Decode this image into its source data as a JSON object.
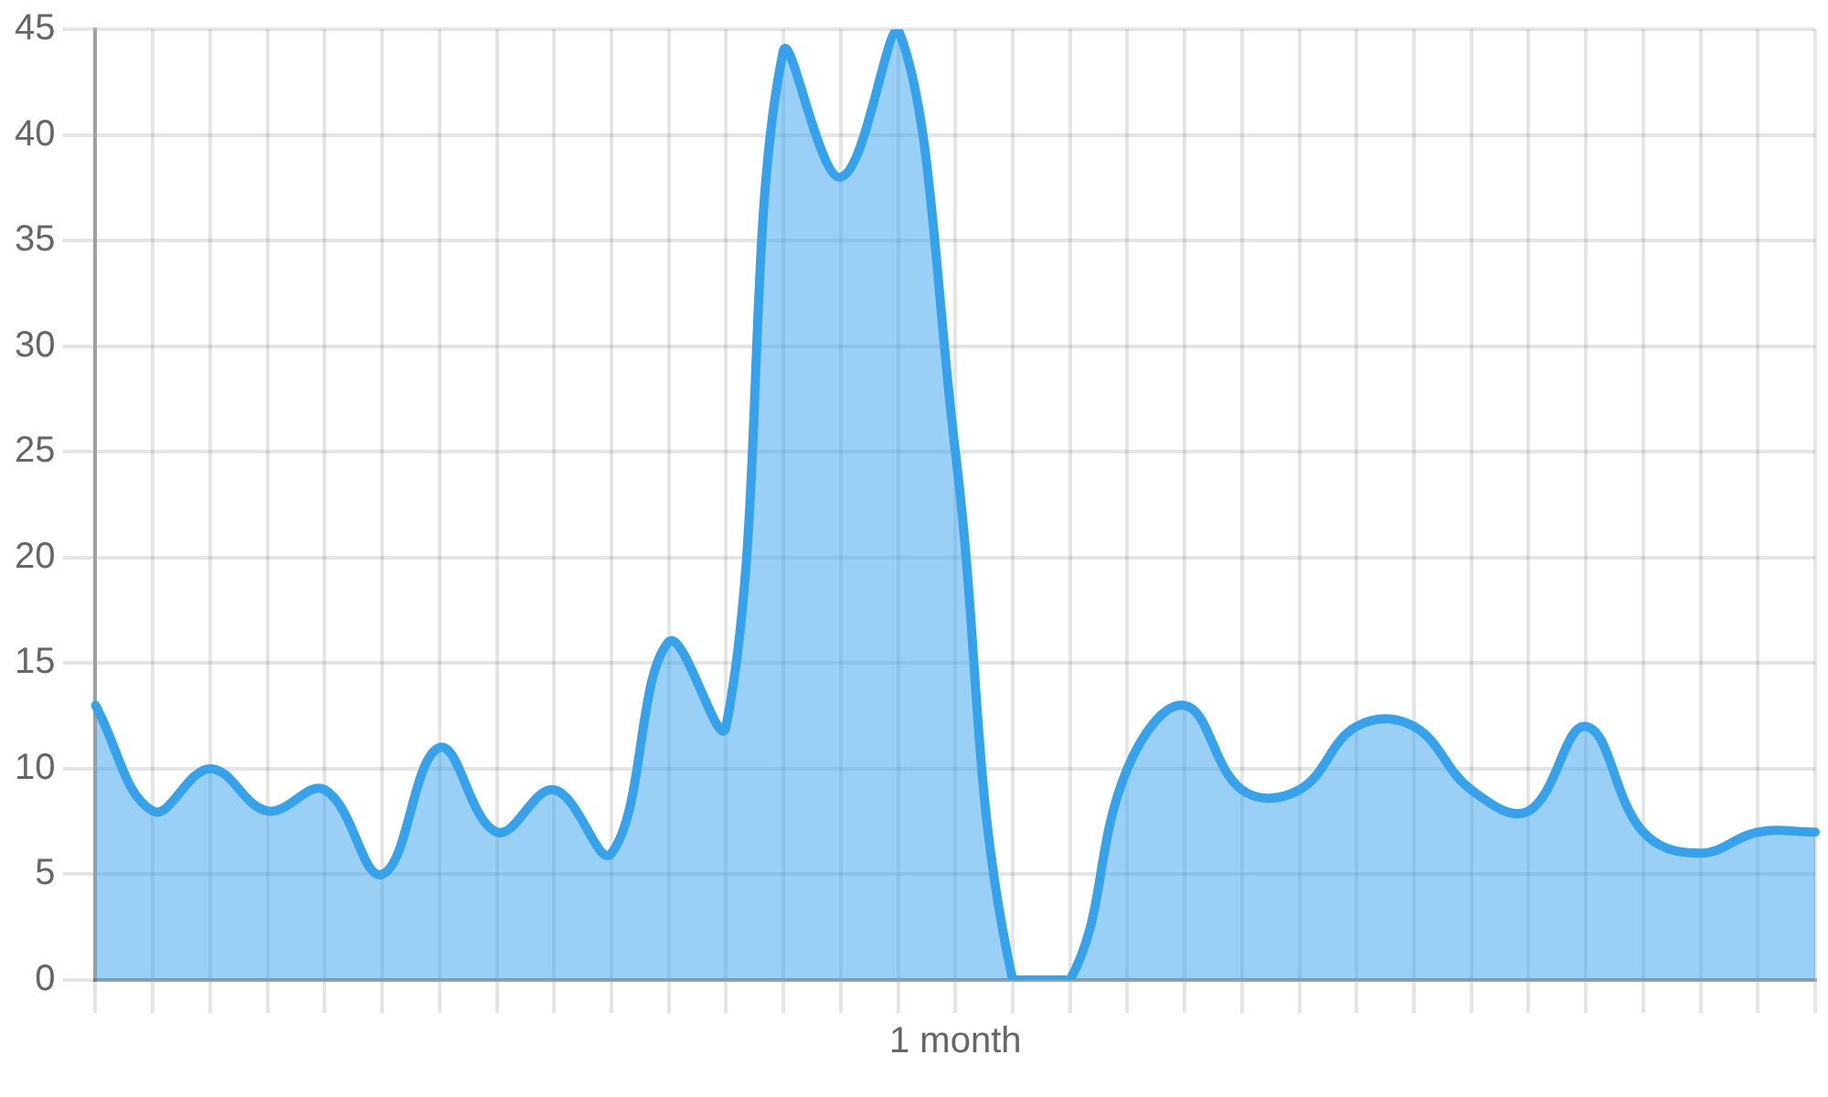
{
  "chart_data": {
    "type": "area",
    "categories": [
      null,
      null,
      null,
      null,
      null,
      null,
      null,
      null,
      null,
      null,
      null,
      null,
      null,
      null,
      null,
      "1 month",
      null,
      null,
      null,
      null,
      null,
      null,
      null,
      null,
      null,
      null,
      null,
      null,
      null,
      null,
      null
    ],
    "series": [
      {
        "color": "#36a2eb",
        "values": [
          13,
          8,
          10,
          8,
          9,
          5,
          11,
          7,
          9,
          6,
          16,
          12,
          44,
          38,
          45,
          25,
          0,
          0,
          10,
          13,
          9,
          9,
          12,
          12,
          9,
          8,
          12,
          7,
          6,
          7,
          7
        ]
      }
    ],
    "ylim": [
      0,
      45
    ],
    "yticks": [
      0,
      5,
      10,
      15,
      20,
      25,
      30,
      35,
      40,
      45
    ],
    "grid": true,
    "marker": "none"
  }
}
